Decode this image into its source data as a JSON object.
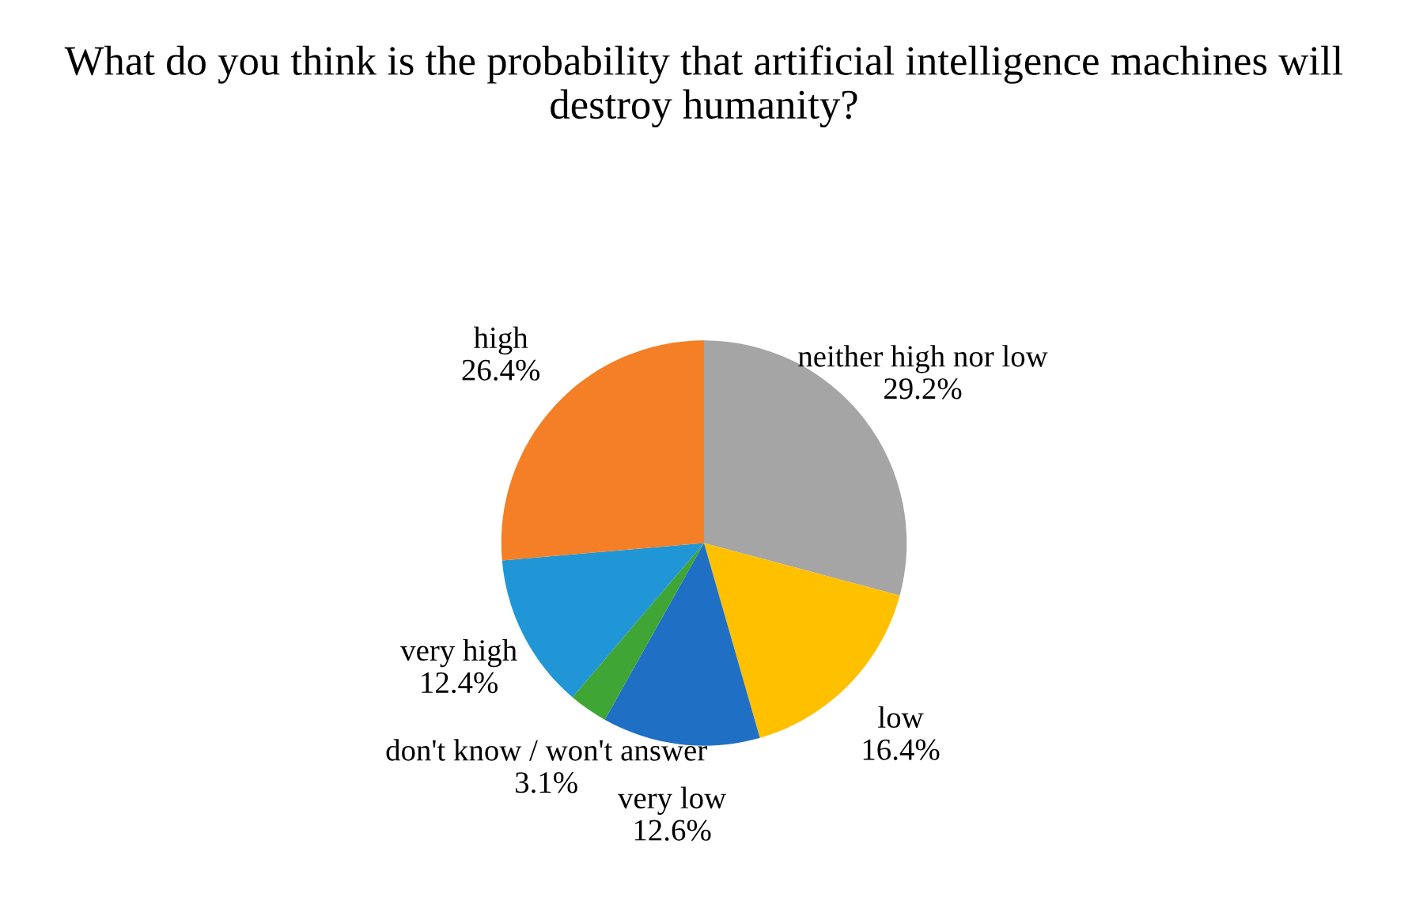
{
  "chart_data": {
    "type": "pie",
    "title": "What do you think is the probability that artificial intelligence machines will destroy humanity?",
    "categories": [
      "neither high nor low",
      "low",
      "very low",
      "don't know / won't answer",
      "very high",
      "high"
    ],
    "values": [
      29.2,
      16.4,
      12.6,
      3.1,
      12.4,
      26.4
    ],
    "value_labels": [
      "29.2%",
      "16.4%",
      "12.6%",
      "3.1%",
      "12.4%",
      "26.4%"
    ],
    "colors": [
      "#a5a5a5",
      "#ffc000",
      "#1f6fc5",
      "#3fa535",
      "#2196d6",
      "#f47f26"
    ],
    "legend": false
  }
}
